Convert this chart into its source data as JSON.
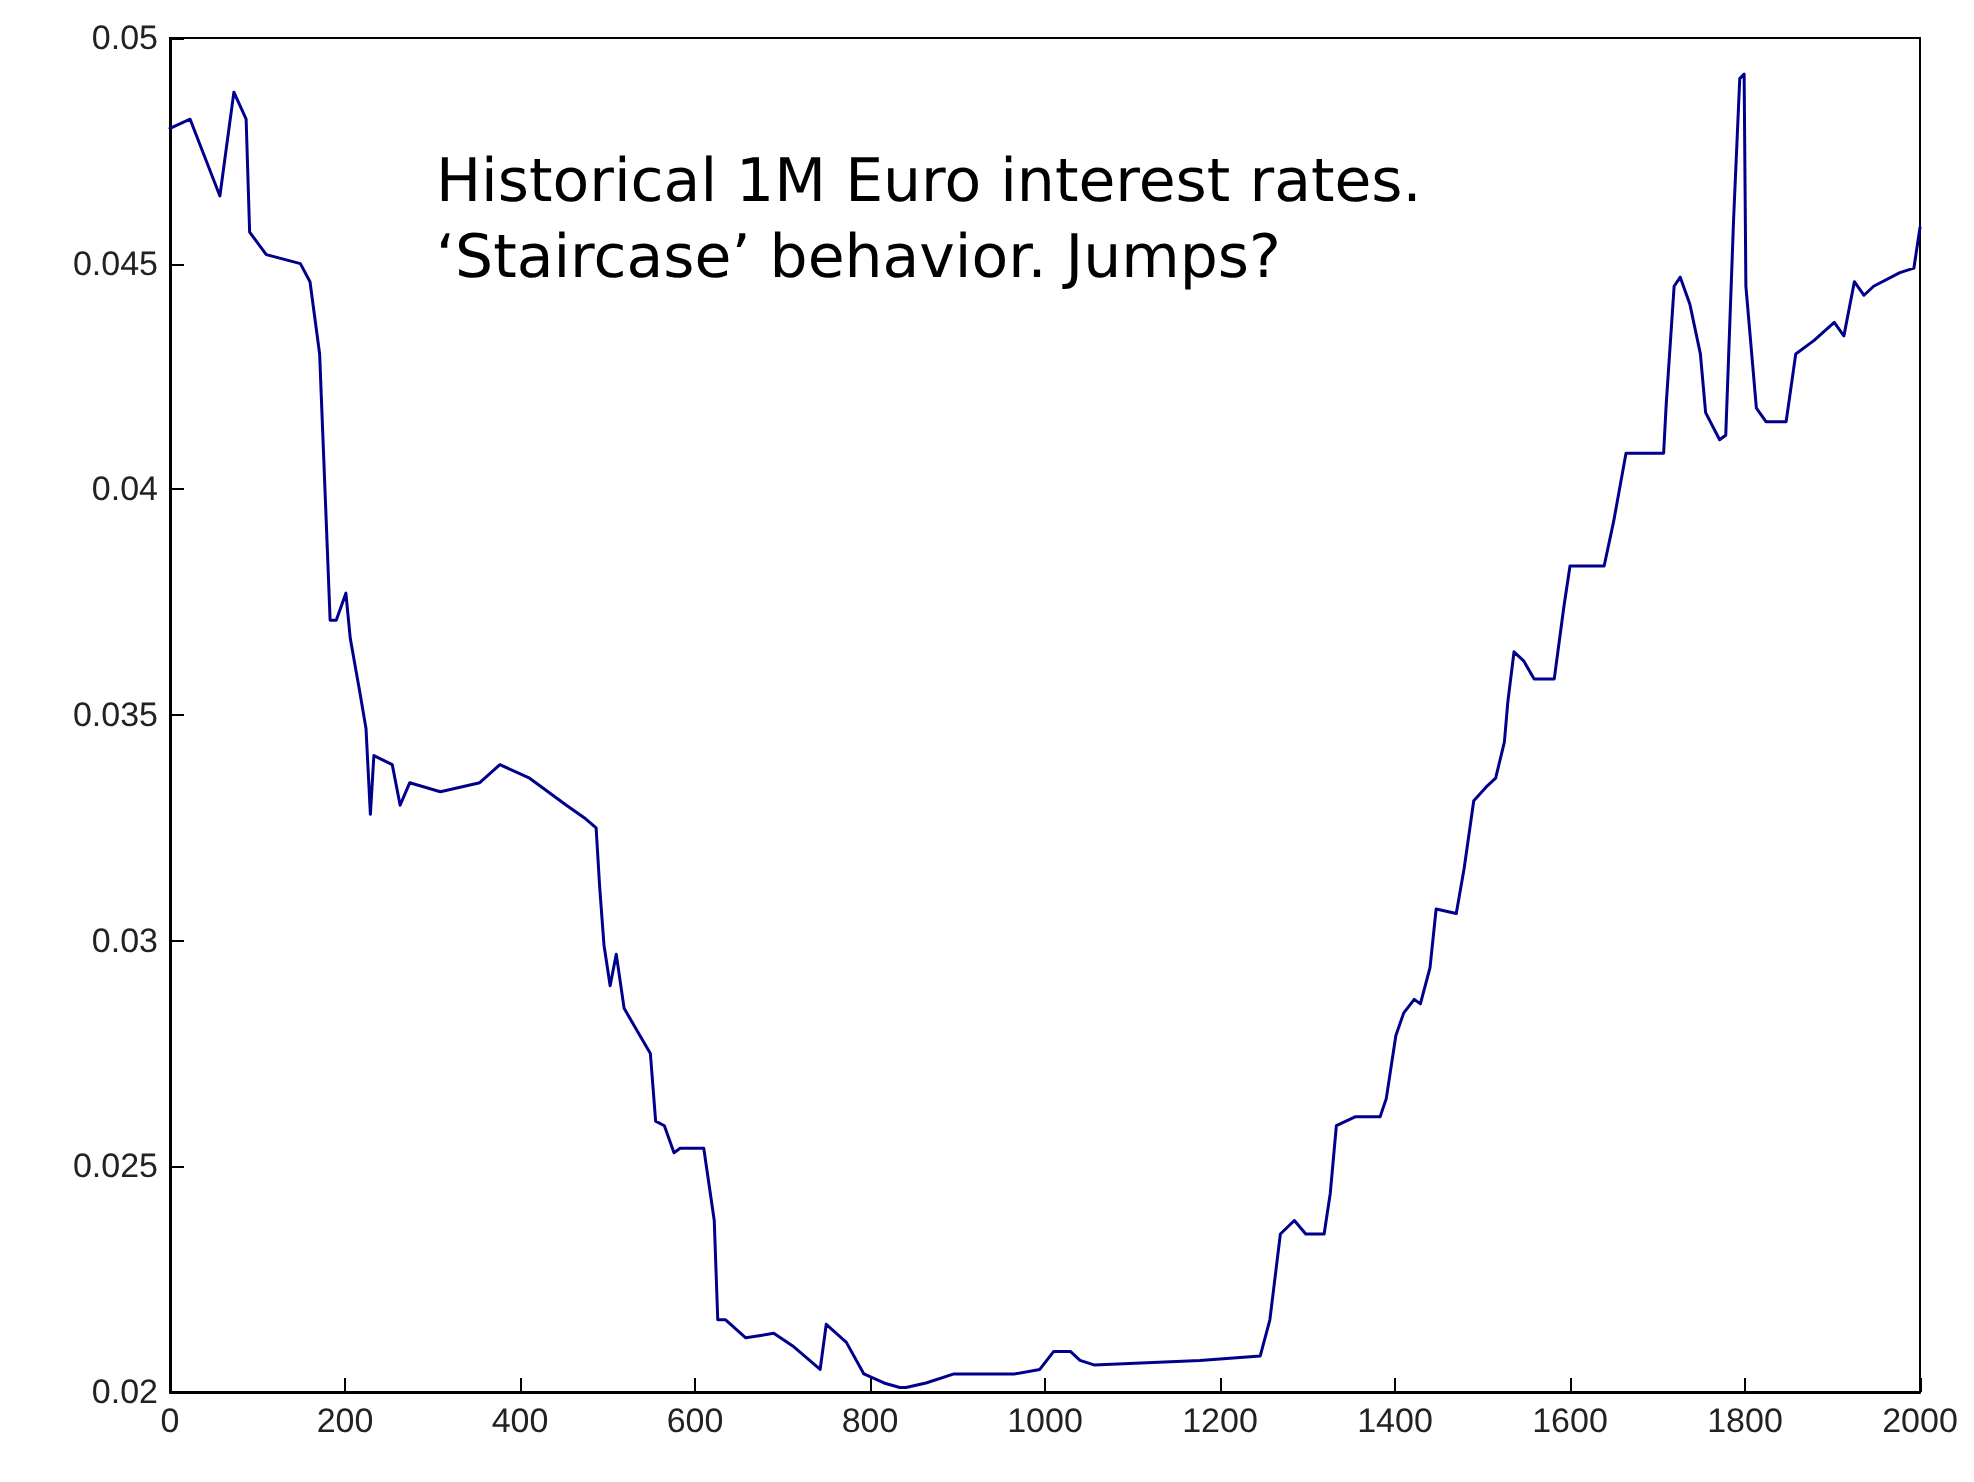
{
  "chart_data": {
    "type": "line",
    "annotations": [
      "Historical 1M Euro interest rates. ‘Staircase’ behavior. Jumps?"
    ],
    "x": [
      0,
      23,
      57,
      73,
      87,
      91,
      110,
      149,
      160,
      171,
      183,
      190,
      201,
      206,
      217,
      224,
      229,
      233,
      254,
      263,
      274,
      309,
      354,
      377,
      411,
      453,
      475,
      487,
      491,
      496,
      503,
      510,
      519,
      537,
      549,
      555,
      565,
      576,
      583,
      610,
      622,
      626,
      635,
      658,
      690,
      713,
      743,
      750,
      773,
      793,
      816,
      834,
      841,
      864,
      896,
      965,
      994,
      1010,
      1029,
      1040,
      1056,
      1177,
      1246,
      1257,
      1269,
      1285,
      1298,
      1319,
      1326,
      1333,
      1355,
      1383,
      1390,
      1401,
      1410,
      1422,
      1429,
      1440,
      1447,
      1470,
      1479,
      1490,
      1504,
      1515,
      1525,
      1529,
      1536,
      1547,
      1559,
      1582,
      1593,
      1600,
      1639,
      1650,
      1664,
      1707,
      1710,
      1719,
      1726,
      1737,
      1749,
      1755,
      1771,
      1778,
      1787,
      1794,
      1799,
      1801,
      1813,
      1824,
      1847,
      1858,
      1879,
      1902,
      1913,
      1925,
      1936,
      1947,
      1977,
      1993,
      2000
    ],
    "series": [
      {
        "color": "#00008c",
        "values": [
          0.048,
          0.0482,
          0.0465,
          0.0488,
          0.0482,
          0.0457,
          0.0452,
          0.045,
          0.0446,
          0.043,
          0.0371,
          0.0371,
          0.0377,
          0.0367,
          0.0355,
          0.0347,
          0.0328,
          0.0341,
          0.0339,
          0.033,
          0.0335,
          0.0333,
          0.0335,
          0.0339,
          0.0336,
          0.033,
          0.0327,
          0.0325,
          0.0312,
          0.0299,
          0.029,
          0.0297,
          0.0285,
          0.0279,
          0.0275,
          0.026,
          0.0259,
          0.0253,
          0.0254,
          0.0254,
          0.0238,
          0.0216,
          0.0216,
          0.0212,
          0.0213,
          0.021,
          0.0205,
          0.0215,
          0.0211,
          0.0204,
          0.0202,
          0.0201,
          0.0201,
          0.0202,
          0.0204,
          0.0204,
          0.0205,
          0.0209,
          0.0209,
          0.0207,
          0.0206,
          0.0207,
          0.0208,
          0.0216,
          0.0235,
          0.0238,
          0.0235,
          0.0235,
          0.0244,
          0.0259,
          0.0261,
          0.0261,
          0.0265,
          0.0279,
          0.0284,
          0.0287,
          0.0286,
          0.0294,
          0.0307,
          0.0306,
          0.0316,
          0.0331,
          0.0334,
          0.0336,
          0.0344,
          0.0353,
          0.0364,
          0.0362,
          0.0358,
          0.0358,
          0.0374,
          0.0383,
          0.0383,
          0.0393,
          0.0408,
          0.0408,
          0.0419,
          0.0445,
          0.0447,
          0.0441,
          0.043,
          0.0417,
          0.0411,
          0.0412,
          0.046,
          0.0491,
          0.0492,
          0.0445,
          0.0418,
          0.0415,
          0.0415,
          0.043,
          0.0433,
          0.0437,
          0.0434,
          0.0446,
          0.0443,
          0.0445,
          0.0448,
          0.0449,
          0.0458
        ]
      }
    ],
    "xlim": [
      0,
      2000
    ],
    "xticks": [
      0,
      200,
      400,
      600,
      800,
      1000,
      1200,
      1400,
      1600,
      1800,
      2000
    ],
    "ylim": [
      0.02,
      0.05
    ],
    "yticks": [
      0.02,
      0.025,
      0.03,
      0.035,
      0.04,
      0.045,
      0.05
    ],
    "grid": false,
    "marker": "none",
    "line_style": "solid"
  }
}
